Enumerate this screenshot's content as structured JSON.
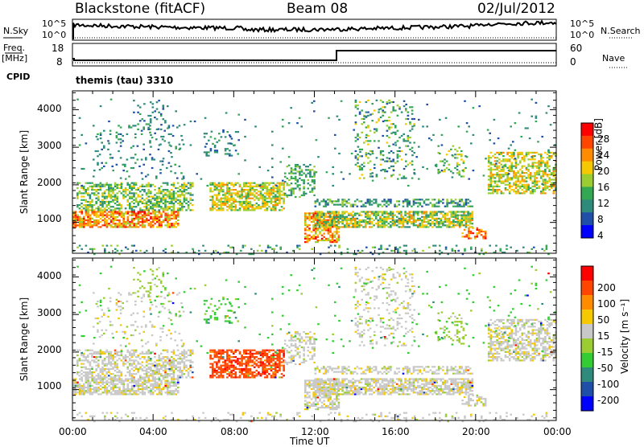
{
  "header": {
    "station": "Blackstone (fitACF)",
    "beam": "Beam 08",
    "date": "02/Jul/2012"
  },
  "summary_panels": {
    "nsky_label": "N.Sky",
    "nsky_ticks": [
      "10^5",
      "10^0"
    ],
    "nsearch_label": "N.Search",
    "freq_label": "Freq.",
    "freq_unit": "[MHz]",
    "freq_ticks": [
      "18",
      "8"
    ],
    "nave_label": "Nave",
    "nave_ticks": [
      "60",
      "0"
    ],
    "cpid_label": "CPID",
    "cpid_text": "themis (tau) 3310"
  },
  "chart_data": [
    {
      "type": "heatmap",
      "panel": "power",
      "ylabel": "Slant Range [km]",
      "yticks": [
        "4000",
        "3000",
        "2000",
        "1000"
      ],
      "ylim": [
        180,
        4500
      ],
      "xlim": [
        0,
        24
      ],
      "colorbar_label": "Power [dB]",
      "colorbar_ticks": [
        "28",
        "24",
        "20",
        "16",
        "12",
        "8",
        "4"
      ],
      "colors": [
        "#0000ff",
        "#1f4fa8",
        "#2e8a7a",
        "#32a852",
        "#9acd32",
        "#f5c800",
        "#ff8c00",
        "#ff4500",
        "#ff0000"
      ]
    },
    {
      "type": "heatmap",
      "panel": "velocity",
      "ylabel": "Slant Range [km]",
      "yticks": [
        "4000",
        "3000",
        "2000",
        "1000"
      ],
      "ylim": [
        180,
        4500
      ],
      "xlim": [
        0,
        24
      ],
      "colorbar_label": "Velocity [m s⁻¹]",
      "colorbar_ticks": [
        "200",
        "100",
        "50",
        "15",
        "-15",
        "-50",
        "-100",
        "-200"
      ],
      "colors": [
        "#0000ff",
        "#1f4fa8",
        "#2e8a7a",
        "#32cd32",
        "#9acd32",
        "#c8c8c8",
        "#f5c800",
        "#ff8c00",
        "#ff4500",
        "#ff0000"
      ]
    }
  ],
  "xaxis": {
    "ticks": [
      "00:00",
      "04:00",
      "08:00",
      "12:00",
      "16:00",
      "20:00",
      "00:00"
    ],
    "label": "Time UT"
  }
}
